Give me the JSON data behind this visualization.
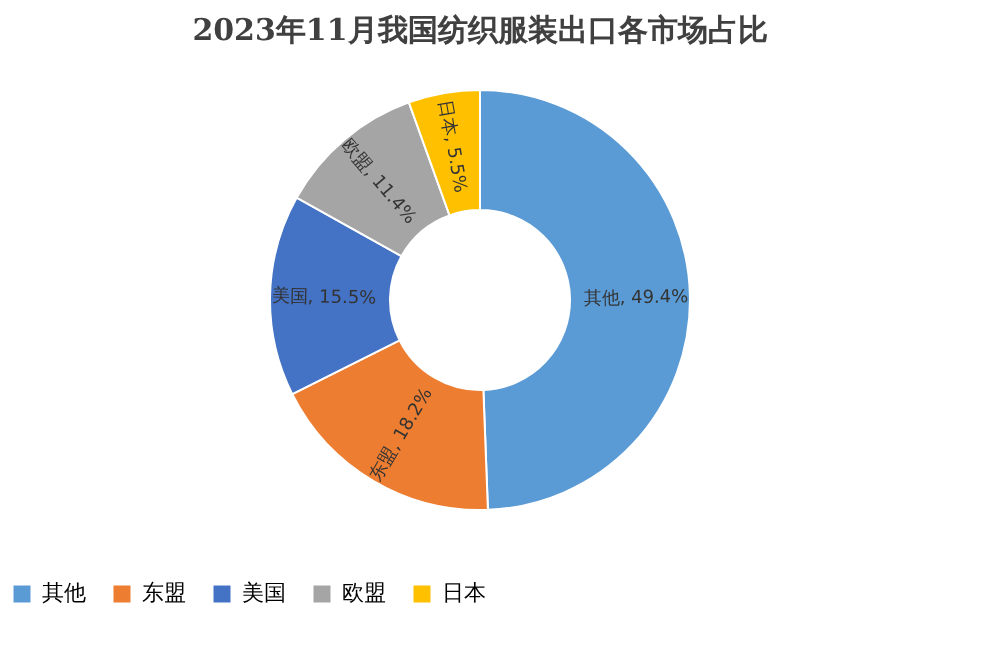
{
  "chart_data": {
    "type": "donut",
    "title": "2023年11月我国纺织服装出口各市场占比",
    "categories": [
      "其他",
      "东盟",
      "美国",
      "欧盟",
      "日本"
    ],
    "values": [
      49.4,
      18.2,
      15.5,
      11.4,
      5.5
    ],
    "colors": [
      "#5b9bd5",
      "#ed7d31",
      "#4472c4",
      "#a5a5a5",
      "#ffc000"
    ],
    "value_labels": [
      "其他, 49.4%",
      "东盟, 18.2%",
      "美国, 15.5%",
      "欧盟, 11.4%",
      "日本, 5.5%"
    ],
    "legend": "bottom"
  }
}
